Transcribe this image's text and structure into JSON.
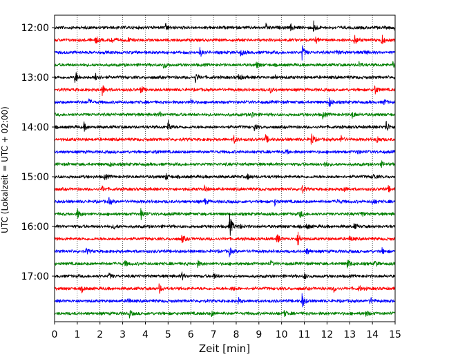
{
  "chart_data": {
    "type": "line",
    "title": "",
    "xlabel": "Zeit  [min]",
    "ylabel": "UTC (Lokalzeit = UTC + 02:00)",
    "xlim": [
      0,
      15
    ],
    "x_ticks": [
      "0",
      "1",
      "2",
      "3",
      "4",
      "5",
      "6",
      "7",
      "8",
      "9",
      "10",
      "11",
      "12",
      "13",
      "14",
      "15"
    ],
    "y_ticks": [
      "12:00",
      "13:00",
      "14:00",
      "15:00",
      "16:00",
      "17:00"
    ],
    "grid": "vertical dotted",
    "trace_interval_minutes": 15,
    "series_colors": [
      "#000000",
      "#ff0000",
      "#0000ff",
      "#008000"
    ],
    "traces": [
      {
        "start": "12:00",
        "color": "#000000",
        "events": [
          [
            4.9,
            0.6
          ],
          [
            9.3,
            0.5
          ],
          [
            10.4,
            0.45
          ],
          [
            11.4,
            1.0
          ],
          [
            15.0,
            0.6
          ]
        ]
      },
      {
        "start": "12:15",
        "color": "#ff0000",
        "events": [
          [
            1.8,
            0.55
          ],
          [
            2.5,
            0.4
          ],
          [
            3.2,
            0.4
          ],
          [
            11.5,
            0.4
          ],
          [
            13.2,
            0.9
          ],
          [
            14.4,
            0.8
          ]
        ]
      },
      {
        "start": "12:30",
        "color": "#0000ff",
        "events": [
          [
            6.4,
            0.6
          ],
          [
            8.2,
            0.5
          ],
          [
            10.9,
            1.1
          ],
          [
            12.4,
            0.4
          ],
          [
            13.6,
            0.4
          ]
        ]
      },
      {
        "start": "12:45",
        "color": "#008000",
        "events": [
          [
            4.8,
            0.6
          ],
          [
            8.9,
            0.45
          ],
          [
            13.4,
            0.5
          ],
          [
            14.9,
            0.4
          ]
        ]
      },
      {
        "start": "13:00",
        "color": "#000000",
        "events": [
          [
            0.9,
            1.0
          ],
          [
            1.8,
            0.9
          ],
          [
            6.2,
            0.7
          ],
          [
            8.1,
            0.6
          ],
          [
            9.7,
            0.4
          ]
        ]
      },
      {
        "start": "13:15",
        "color": "#ff0000",
        "events": [
          [
            2.1,
            0.8
          ],
          [
            3.8,
            0.55
          ],
          [
            9.5,
            0.4
          ],
          [
            14.1,
            0.7
          ]
        ]
      },
      {
        "start": "13:30",
        "color": "#0000ff",
        "events": [
          [
            1.5,
            0.4
          ],
          [
            6.0,
            0.4
          ],
          [
            12.1,
            0.7
          ],
          [
            14.5,
            0.4
          ]
        ]
      },
      {
        "start": "13:45",
        "color": "#008000",
        "events": [
          [
            4.6,
            0.45
          ],
          [
            8.7,
            0.4
          ],
          [
            11.8,
            0.5
          ],
          [
            13.1,
            0.5
          ]
        ]
      },
      {
        "start": "14:00",
        "color": "#000000",
        "events": [
          [
            1.3,
            0.55
          ],
          [
            5.0,
            0.9
          ],
          [
            8.8,
            0.4
          ],
          [
            14.6,
            1.0
          ]
        ]
      },
      {
        "start": "14:15",
        "color": "#ff0000",
        "events": [
          [
            7.9,
            0.55
          ],
          [
            9.3,
            0.6
          ],
          [
            11.3,
            1.0
          ],
          [
            12.6,
            0.55
          ],
          [
            14.2,
            0.5
          ]
        ]
      },
      {
        "start": "14:30",
        "color": "#0000ff",
        "events": [
          [
            4.4,
            0.35
          ],
          [
            10.2,
            0.4
          ],
          [
            13.3,
            0.4
          ]
        ]
      },
      {
        "start": "14:45",
        "color": "#008000",
        "events": [
          [
            2.4,
            0.35
          ],
          [
            11.9,
            0.45
          ],
          [
            14.4,
            0.35
          ]
        ]
      },
      {
        "start": "15:00",
        "color": "#000000",
        "events": [
          [
            2.2,
            0.4
          ],
          [
            4.9,
            0.45
          ],
          [
            8.5,
            0.4
          ],
          [
            14.0,
            0.5
          ]
        ]
      },
      {
        "start": "15:15",
        "color": "#ff0000",
        "events": [
          [
            2.1,
            0.4
          ],
          [
            6.6,
            0.45
          ],
          [
            10.9,
            0.6
          ],
          [
            12.7,
            0.45
          ],
          [
            14.7,
            0.4
          ]
        ]
      },
      {
        "start": "15:30",
        "color": "#0000ff",
        "events": [
          [
            2.4,
            0.5
          ],
          [
            6.6,
            0.45
          ],
          [
            9.7,
            0.45
          ],
          [
            12.4,
            0.4
          ],
          [
            14.0,
            0.45
          ]
        ]
      },
      {
        "start": "15:45",
        "color": "#008000",
        "events": [
          [
            1.0,
            0.75
          ],
          [
            3.8,
            0.8
          ],
          [
            10.8,
            0.6
          ],
          [
            13.5,
            0.4
          ]
        ]
      },
      {
        "start": "16:00",
        "color": "#000000",
        "events": [
          [
            2.6,
            0.4
          ],
          [
            7.7,
            1.9
          ],
          [
            8.1,
            0.5
          ],
          [
            11.1,
            0.4
          ],
          [
            13.2,
            0.4
          ]
        ]
      },
      {
        "start": "16:15",
        "color": "#ff0000",
        "events": [
          [
            5.6,
            0.6
          ],
          [
            9.8,
            0.7
          ],
          [
            10.7,
            1.2
          ],
          [
            13.0,
            0.45
          ]
        ]
      },
      {
        "start": "16:30",
        "color": "#0000ff",
        "events": [
          [
            1.4,
            0.4
          ],
          [
            7.7,
            0.6
          ],
          [
            11.1,
            0.5
          ],
          [
            14.4,
            0.45
          ]
        ]
      },
      {
        "start": "16:45",
        "color": "#008000",
        "events": [
          [
            3.1,
            0.4
          ],
          [
            6.3,
            0.4
          ],
          [
            9.5,
            0.4
          ],
          [
            12.9,
            0.8
          ],
          [
            14.1,
            0.45
          ]
        ]
      },
      {
        "start": "17:00",
        "color": "#000000",
        "events": [
          [
            2.4,
            0.4
          ],
          [
            5.6,
            0.6
          ],
          [
            7.0,
            0.4
          ],
          [
            11.0,
            0.4
          ]
        ]
      },
      {
        "start": "17:15",
        "color": "#ff0000",
        "events": [
          [
            1.2,
            0.4
          ],
          [
            4.6,
            0.7
          ],
          [
            7.8,
            0.4
          ],
          [
            12.3,
            0.45
          ],
          [
            13.4,
            0.4
          ]
        ]
      },
      {
        "start": "17:30",
        "color": "#0000ff",
        "events": [
          [
            3.2,
            0.5
          ],
          [
            8.1,
            0.4
          ],
          [
            10.9,
            1.0
          ],
          [
            13.9,
            0.55
          ]
        ]
      },
      {
        "start": "17:45",
        "color": "#008000",
        "events": [
          [
            3.3,
            0.45
          ],
          [
            6.9,
            0.4
          ],
          [
            10.1,
            0.4
          ],
          [
            13.7,
            0.5
          ]
        ]
      }
    ]
  }
}
